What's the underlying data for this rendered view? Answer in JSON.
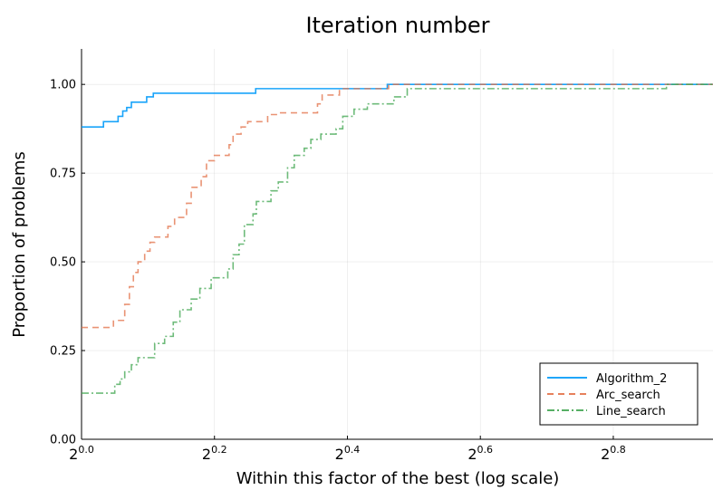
{
  "chart_data": {
    "type": "line",
    "title": "Iteration number",
    "xlabel": "Within this factor of the best (log scale)",
    "ylabel": "Proportion of problems",
    "x_scale": "log2",
    "x_exponent_range": [
      0.0,
      0.95
    ],
    "x_ticks": [
      {
        "base": "2",
        "exp": "0.0",
        "value": 0.0
      },
      {
        "base": "2",
        "exp": "0.2",
        "value": 0.2
      },
      {
        "base": "2",
        "exp": "0.4",
        "value": 0.4
      },
      {
        "base": "2",
        "exp": "0.6",
        "value": 0.6
      },
      {
        "base": "2",
        "exp": "0.8",
        "value": 0.8
      }
    ],
    "ylim": [
      0.0,
      1.1
    ],
    "y_ticks": [
      {
        "label": "0.00",
        "value": 0.0
      },
      {
        "label": "0.25",
        "value": 0.25
      },
      {
        "label": "0.50",
        "value": 0.5
      },
      {
        "label": "0.75",
        "value": 0.75
      },
      {
        "label": "1.00",
        "value": 1.0
      }
    ],
    "grid": true,
    "legend_position": "bottom-right",
    "series": [
      {
        "name": "Algorithm_2",
        "color": "#009AFA",
        "dash": "solid",
        "points": [
          [
            0.0,
            0.88
          ],
          [
            0.033,
            0.88
          ],
          [
            0.033,
            0.895
          ],
          [
            0.055,
            0.895
          ],
          [
            0.055,
            0.91
          ],
          [
            0.062,
            0.91
          ],
          [
            0.062,
            0.925
          ],
          [
            0.068,
            0.925
          ],
          [
            0.068,
            0.935
          ],
          [
            0.075,
            0.935
          ],
          [
            0.075,
            0.95
          ],
          [
            0.098,
            0.95
          ],
          [
            0.098,
            0.965
          ],
          [
            0.108,
            0.965
          ],
          [
            0.108,
            0.975
          ],
          [
            0.262,
            0.975
          ],
          [
            0.262,
            0.988
          ],
          [
            0.46,
            0.988
          ],
          [
            0.46,
            1.0
          ],
          [
            0.95,
            1.0
          ]
        ]
      },
      {
        "name": "Arc_search",
        "color": "#E26F46",
        "dash": "dashed",
        "points": [
          [
            0.0,
            0.315
          ],
          [
            0.048,
            0.315
          ],
          [
            0.048,
            0.335
          ],
          [
            0.065,
            0.335
          ],
          [
            0.065,
            0.38
          ],
          [
            0.072,
            0.38
          ],
          [
            0.072,
            0.43
          ],
          [
            0.078,
            0.43
          ],
          [
            0.078,
            0.47
          ],
          [
            0.085,
            0.47
          ],
          [
            0.085,
            0.5
          ],
          [
            0.095,
            0.5
          ],
          [
            0.095,
            0.53
          ],
          [
            0.103,
            0.53
          ],
          [
            0.103,
            0.555
          ],
          [
            0.11,
            0.555
          ],
          [
            0.11,
            0.57
          ],
          [
            0.13,
            0.57
          ],
          [
            0.13,
            0.6
          ],
          [
            0.14,
            0.6
          ],
          [
            0.14,
            0.625
          ],
          [
            0.158,
            0.625
          ],
          [
            0.158,
            0.665
          ],
          [
            0.165,
            0.665
          ],
          [
            0.165,
            0.71
          ],
          [
            0.18,
            0.71
          ],
          [
            0.18,
            0.74
          ],
          [
            0.188,
            0.74
          ],
          [
            0.188,
            0.785
          ],
          [
            0.2,
            0.785
          ],
          [
            0.2,
            0.8
          ],
          [
            0.222,
            0.8
          ],
          [
            0.222,
            0.83
          ],
          [
            0.228,
            0.83
          ],
          [
            0.228,
            0.86
          ],
          [
            0.24,
            0.86
          ],
          [
            0.24,
            0.88
          ],
          [
            0.25,
            0.88
          ],
          [
            0.25,
            0.895
          ],
          [
            0.28,
            0.895
          ],
          [
            0.28,
            0.915
          ],
          [
            0.298,
            0.915
          ],
          [
            0.298,
            0.92
          ],
          [
            0.355,
            0.92
          ],
          [
            0.355,
            0.945
          ],
          [
            0.362,
            0.945
          ],
          [
            0.362,
            0.97
          ],
          [
            0.388,
            0.97
          ],
          [
            0.388,
            0.988
          ],
          [
            0.462,
            0.988
          ],
          [
            0.462,
            1.0
          ],
          [
            0.95,
            1.0
          ]
        ]
      },
      {
        "name": "Line_search",
        "color": "#3EA44E",
        "dash": "dashdot",
        "points": [
          [
            0.0,
            0.13
          ],
          [
            0.05,
            0.13
          ],
          [
            0.05,
            0.155
          ],
          [
            0.058,
            0.155
          ],
          [
            0.058,
            0.17
          ],
          [
            0.065,
            0.17
          ],
          [
            0.065,
            0.19
          ],
          [
            0.075,
            0.19
          ],
          [
            0.075,
            0.21
          ],
          [
            0.085,
            0.21
          ],
          [
            0.085,
            0.23
          ],
          [
            0.11,
            0.23
          ],
          [
            0.11,
            0.27
          ],
          [
            0.125,
            0.27
          ],
          [
            0.125,
            0.29
          ],
          [
            0.138,
            0.29
          ],
          [
            0.138,
            0.33
          ],
          [
            0.148,
            0.33
          ],
          [
            0.148,
            0.365
          ],
          [
            0.165,
            0.365
          ],
          [
            0.165,
            0.395
          ],
          [
            0.178,
            0.395
          ],
          [
            0.178,
            0.425
          ],
          [
            0.195,
            0.425
          ],
          [
            0.195,
            0.455
          ],
          [
            0.22,
            0.455
          ],
          [
            0.22,
            0.48
          ],
          [
            0.228,
            0.48
          ],
          [
            0.228,
            0.52
          ],
          [
            0.237,
            0.52
          ],
          [
            0.237,
            0.55
          ],
          [
            0.245,
            0.55
          ],
          [
            0.245,
            0.605
          ],
          [
            0.258,
            0.605
          ],
          [
            0.258,
            0.635
          ],
          [
            0.263,
            0.635
          ],
          [
            0.263,
            0.67
          ],
          [
            0.285,
            0.67
          ],
          [
            0.285,
            0.7
          ],
          [
            0.296,
            0.7
          ],
          [
            0.296,
            0.725
          ],
          [
            0.31,
            0.725
          ],
          [
            0.31,
            0.765
          ],
          [
            0.32,
            0.765
          ],
          [
            0.32,
            0.8
          ],
          [
            0.335,
            0.8
          ],
          [
            0.335,
            0.82
          ],
          [
            0.345,
            0.82
          ],
          [
            0.345,
            0.845
          ],
          [
            0.36,
            0.845
          ],
          [
            0.36,
            0.86
          ],
          [
            0.383,
            0.86
          ],
          [
            0.383,
            0.875
          ],
          [
            0.393,
            0.875
          ],
          [
            0.393,
            0.91
          ],
          [
            0.41,
            0.91
          ],
          [
            0.41,
            0.93
          ],
          [
            0.43,
            0.93
          ],
          [
            0.43,
            0.945
          ],
          [
            0.47,
            0.945
          ],
          [
            0.47,
            0.965
          ],
          [
            0.49,
            0.965
          ],
          [
            0.49,
            0.988
          ],
          [
            0.88,
            0.988
          ],
          [
            0.88,
            1.0
          ],
          [
            0.95,
            1.0
          ]
        ]
      }
    ]
  }
}
